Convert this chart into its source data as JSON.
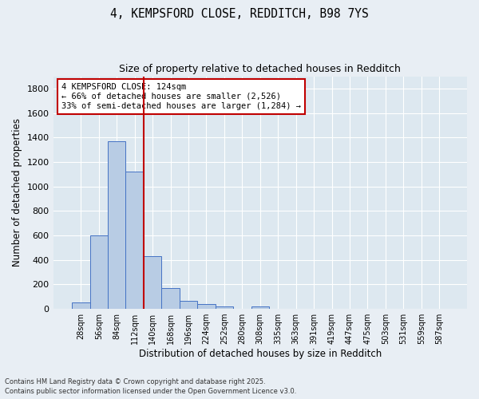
{
  "title1": "4, KEMPSFORD CLOSE, REDDITCH, B98 7YS",
  "title2": "Size of property relative to detached houses in Redditch",
  "xlabel": "Distribution of detached houses by size in Redditch",
  "ylabel": "Number of detached properties",
  "categories": [
    "28sqm",
    "56sqm",
    "84sqm",
    "112sqm",
    "140sqm",
    "168sqm",
    "196sqm",
    "224sqm",
    "252sqm",
    "280sqm",
    "308sqm",
    "335sqm",
    "363sqm",
    "391sqm",
    "419sqm",
    "447sqm",
    "475sqm",
    "503sqm",
    "531sqm",
    "559sqm",
    "587sqm"
  ],
  "values": [
    50,
    600,
    1370,
    1120,
    430,
    170,
    65,
    40,
    20,
    0,
    20,
    0,
    0,
    0,
    0,
    0,
    0,
    0,
    0,
    0,
    0
  ],
  "bar_color": "#b8cce4",
  "bar_edge_color": "#4472c4",
  "vline_x": 3.5,
  "vline_color": "#c00000",
  "annotation_text": "4 KEMPSFORD CLOSE: 124sqm\n← 66% of detached houses are smaller (2,526)\n33% of semi-detached houses are larger (1,284) →",
  "annotation_box_color": "#c00000",
  "ylim": [
    0,
    1900
  ],
  "yticks": [
    0,
    200,
    400,
    600,
    800,
    1000,
    1200,
    1400,
    1600,
    1800
  ],
  "background_color": "#dde8f0",
  "grid_color": "#ffffff",
  "footnote1": "Contains HM Land Registry data © Crown copyright and database right 2025.",
  "footnote2": "Contains public sector information licensed under the Open Government Licence v3.0."
}
